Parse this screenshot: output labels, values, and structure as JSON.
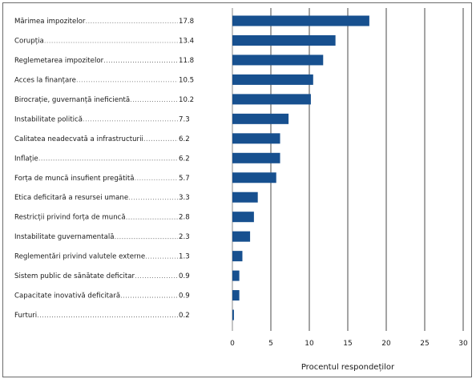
{
  "chart_data": {
    "type": "bar",
    "orientation": "horizontal",
    "title": "",
    "xlabel": "Procentul respondeților",
    "ylabel": "",
    "xlim": [
      0,
      30
    ],
    "xticks": [
      0,
      5,
      10,
      15,
      20,
      25,
      30
    ],
    "grid": true,
    "bar_color": "#17508f",
    "categories": [
      "Mărimea impozitelor",
      "Corupția",
      "Reglemetarea impozitelor",
      "Acces la finanțare",
      "Birocrație, guvernanță ineficientă",
      "Instabilitate politică",
      "Calitatea neadecvată a infrastructurii",
      "Inflație",
      "Forța de muncă insufient pregătită",
      "Etica deficitară a resursei umane",
      "Restricții privind forța de muncă",
      "Instabilitate guvernamentală",
      "Reglementări privind valutele externe",
      "Sistem public de sănătate deficitar",
      "Capacitate inovativă deficitară",
      "Furturi"
    ],
    "value_labels": [
      "17.8",
      "13.4",
      "11.8",
      "10.5",
      "10.2",
      "7.3",
      "6.2",
      "6.2",
      "5.7",
      "3.3",
      "2.8",
      "2.3",
      "1.3",
      "0.9",
      "0.9",
      "0.2"
    ],
    "values": [
      17.8,
      13.4,
      11.8,
      10.5,
      10.2,
      7.3,
      6.2,
      6.2,
      5.7,
      3.3,
      2.8,
      2.3,
      1.3,
      0.9,
      0.9,
      0.2
    ]
  }
}
